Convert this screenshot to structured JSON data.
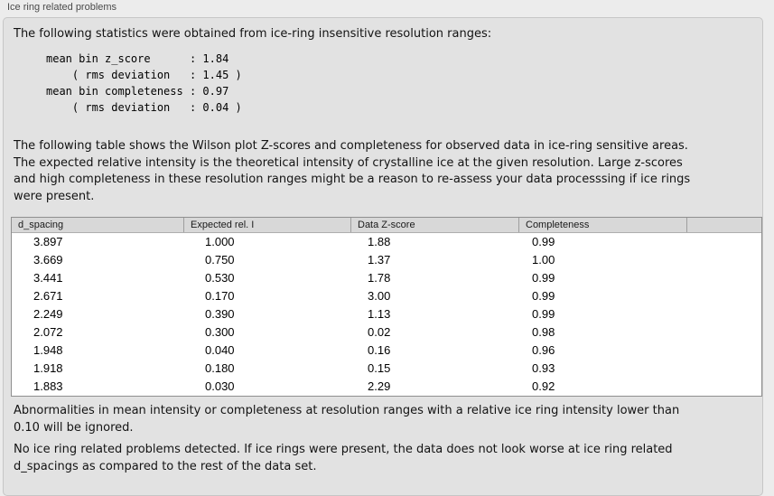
{
  "panel": {
    "title": "Ice ring related problems"
  },
  "intro": "The following statistics were obtained from ice-ring insensitive resolution ranges:",
  "stats_block": {
    "lines": [
      "mean bin z_score      : 1.84",
      "    ( rms deviation   : 1.45 )",
      "mean bin completeness : 0.97",
      "    ( rms deviation   : 0.04 )"
    ]
  },
  "description_lines": [
    "The following table shows the Wilson plot Z-scores and completeness for observed data in ice-ring sensitive areas.",
    "The expected relative intensity is the theoretical intensity of crystalline ice at the given resolution. Large z-scores",
    "and high completeness in these resolution ranges might be a reason to re-assess your data processsing if ice rings",
    "were present."
  ],
  "table": {
    "columns": [
      "d_spacing",
      "Expected rel. I",
      "Data Z-score",
      "Completeness",
      ""
    ],
    "rows": [
      [
        "3.897",
        "1.000",
        "1.88",
        "0.99"
      ],
      [
        "3.669",
        "0.750",
        "1.37",
        "1.00"
      ],
      [
        "3.441",
        "0.530",
        "1.78",
        "0.99"
      ],
      [
        "2.671",
        "0.170",
        "3.00",
        "0.99"
      ],
      [
        "2.249",
        "0.390",
        "1.13",
        "0.99"
      ],
      [
        "2.072",
        "0.300",
        "0.02",
        "0.98"
      ],
      [
        "1.948",
        "0.040",
        "0.16",
        "0.96"
      ],
      [
        "1.918",
        "0.180",
        "0.15",
        "0.93"
      ],
      [
        "1.883",
        "0.030",
        "2.29",
        "0.92"
      ]
    ]
  },
  "footnote_lines": [
    "Abnormalities in mean intensity or completeness at resolution ranges with a relative ice ring intensity lower than",
    "0.10 will be ignored."
  ],
  "conclusion_lines": [
    "No ice ring related problems detected. If ice rings were present, the data does not look worse at ice ring related",
    "d_spacings as compared to the rest of the data set."
  ],
  "colors": {
    "panel_background": "#e2e2e2",
    "table_header_background": "#d8d8d8",
    "table_border": "#8f8f8f",
    "page_background": "#ececec"
  }
}
